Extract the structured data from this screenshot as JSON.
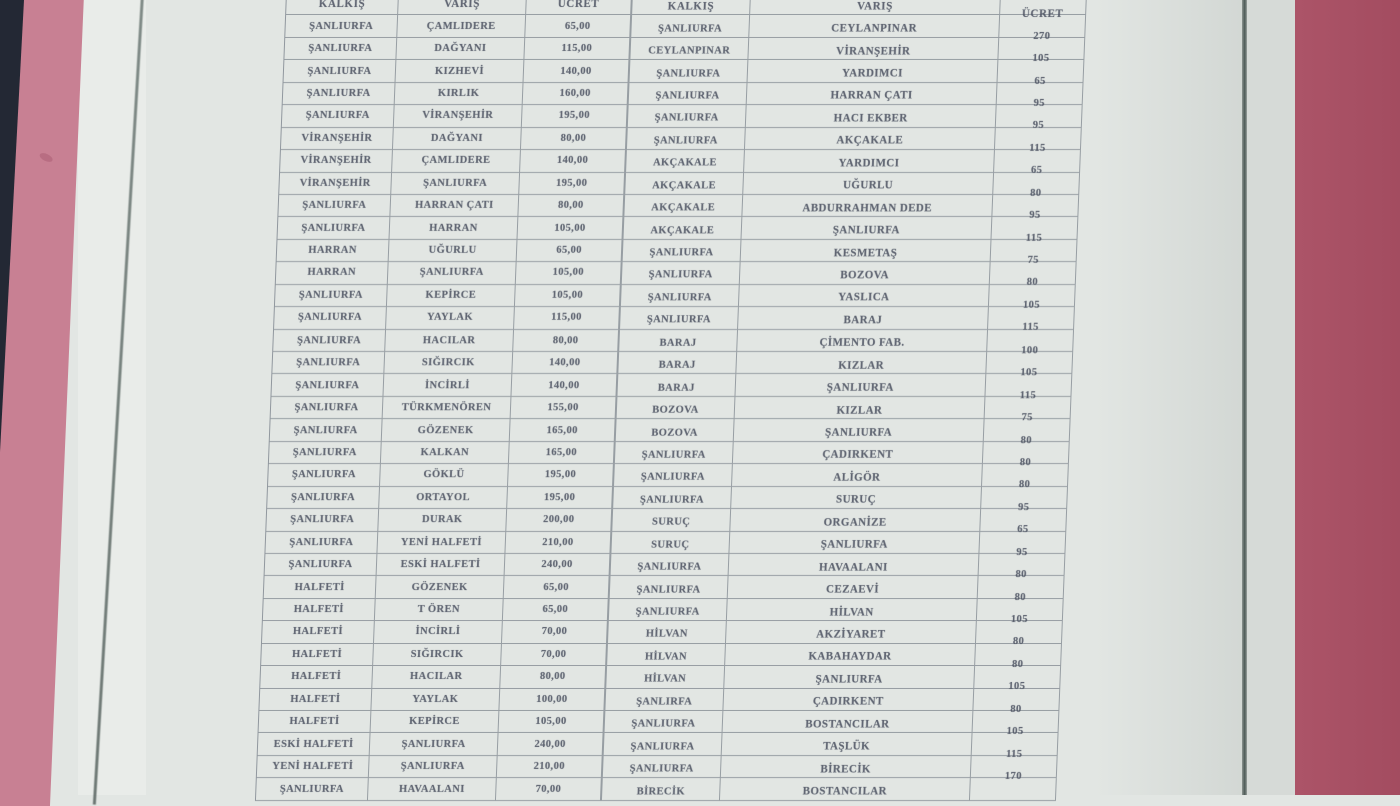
{
  "document_photo": {
    "description_labels": {
      "table_name": "fare-table"
    },
    "colors": {
      "paper": "#e2e6e3",
      "paper_bright": "#e9ece9",
      "paper_outer_strip": "#d6dad7",
      "ink": "#4a5160",
      "grid_line": "#5a6270",
      "pink_band_left": "#c88093",
      "pink_smudge": "#a85a72",
      "red_band_right": "#ac5468",
      "black_wedge": "#232834",
      "fold_line": "#4d5a57"
    },
    "table": {
      "headers": [
        "KALKIŞ",
        "VARIŞ",
        "ÜCRET",
        "KALKIŞ",
        "VARIŞ",
        "ÜCRET"
      ],
      "rows": [
        [
          "ŞANLIURFA",
          "ÇAMLIDERE",
          "65,00",
          "ŞANLIURFA",
          "CEYLANPINAR",
          "270"
        ],
        [
          "ŞANLIURFA",
          "DAĞYANI",
          "115,00",
          "CEYLANPINAR",
          "VİRANŞEHİR",
          "105"
        ],
        [
          "ŞANLIURFA",
          "KIZHEVİ",
          "140,00",
          "ŞANLIURFA",
          "YARDIMCI",
          "65"
        ],
        [
          "ŞANLIURFA",
          "KIRLIK",
          "160,00",
          "ŞANLIURFA",
          "HARRAN ÇATI",
          "95"
        ],
        [
          "ŞANLIURFA",
          "VİRANŞEHİR",
          "195,00",
          "ŞANLIURFA",
          "HACI EKBER",
          "95"
        ],
        [
          "VİRANŞEHİR",
          "DAĞYANI",
          "80,00",
          "ŞANLIURFA",
          "AKÇAKALE",
          "115"
        ],
        [
          "VİRANŞEHİR",
          "ÇAMLIDERE",
          "140,00",
          "AKÇAKALE",
          "YARDIMCI",
          "65"
        ],
        [
          "VİRANŞEHİR",
          "ŞANLIURFA",
          "195,00",
          "AKÇAKALE",
          "UĞURLU",
          "80"
        ],
        [
          "ŞANLIURFA",
          "HARRAN ÇATI",
          "80,00",
          "AKÇAKALE",
          "ABDURRAHMAN DEDE",
          "95"
        ],
        [
          "ŞANLIURFA",
          "HARRAN",
          "105,00",
          "AKÇAKALE",
          "ŞANLIURFA",
          "115"
        ],
        [
          "HARRAN",
          "UĞURLU",
          "65,00",
          "ŞANLIURFA",
          "KESMETAŞ",
          "75"
        ],
        [
          "HARRAN",
          "ŞANLIURFA",
          "105,00",
          "ŞANLIURFA",
          "BOZOVA",
          "80"
        ],
        [
          "ŞANLIURFA",
          "KEPİRCE",
          "105,00",
          "ŞANLIURFA",
          "YASLICA",
          "105"
        ],
        [
          "ŞANLIURFA",
          "YAYLAK",
          "115,00",
          "ŞANLIURFA",
          "BARAJ",
          "115"
        ],
        [
          "ŞANLIURFA",
          "HACILAR",
          "80,00",
          "BARAJ",
          "ÇİMENTO FAB.",
          "100"
        ],
        [
          "ŞANLIURFA",
          "SIĞIRCIK",
          "140,00",
          "BARAJ",
          "KIZLAR",
          "105"
        ],
        [
          "ŞANLIURFA",
          "İNCİRLİ",
          "140,00",
          "BARAJ",
          "ŞANLIURFA",
          "115"
        ],
        [
          "ŞANLIURFA",
          "TÜRKMENÖREN",
          "155,00",
          "BOZOVA",
          "KIZLAR",
          "75"
        ],
        [
          "ŞANLIURFA",
          "GÖZENEK",
          "165,00",
          "BOZOVA",
          "ŞANLIURFA",
          "80"
        ],
        [
          "ŞANLIURFA",
          "KALKAN",
          "165,00",
          "ŞANLIURFA",
          "ÇADIRKENT",
          "80"
        ],
        [
          "ŞANLIURFA",
          "GÖKLÜ",
          "195,00",
          "ŞANLIURFA",
          "ALİGÖR",
          "80"
        ],
        [
          "ŞANLIURFA",
          "ORTAYOL",
          "195,00",
          "ŞANLIURFA",
          "SURUÇ",
          "95"
        ],
        [
          "ŞANLIURFA",
          "DURAK",
          "200,00",
          "SURUÇ",
          "ORGANİZE",
          "65"
        ],
        [
          "ŞANLIURFA",
          "YENİ HALFETİ",
          "210,00",
          "SURUÇ",
          "ŞANLIURFA",
          "95"
        ],
        [
          "ŞANLIURFA",
          "ESKİ HALFETİ",
          "240,00",
          "ŞANLIURFA",
          "HAVAALANI",
          "80"
        ],
        [
          "HALFETİ",
          "GÖZENEK",
          "65,00",
          "ŞANLIURFA",
          "CEZAEVİ",
          "80"
        ],
        [
          "HALFETİ",
          "T ÖREN",
          "65,00",
          "ŞANLIURFA",
          "HİLVAN",
          "105"
        ],
        [
          "HALFETİ",
          "İNCİRLİ",
          "70,00",
          "HİLVAN",
          "AKZİYARET",
          "80"
        ],
        [
          "HALFETİ",
          "SIĞIRCIK",
          "70,00",
          "HİLVAN",
          "KABAHAYDAR",
          "80"
        ],
        [
          "HALFETİ",
          "HACILAR",
          "80,00",
          "HİLVAN",
          "ŞANLIURFA",
          "105"
        ],
        [
          "HALFETİ",
          "YAYLAK",
          "100,00",
          "ŞANLIRFA",
          "ÇADIRKENT",
          "80"
        ],
        [
          "HALFETİ",
          "KEPİRCE",
          "105,00",
          "ŞANLIURFA",
          "BOSTANCILAR",
          "105"
        ],
        [
          "ESKİ HALFETİ",
          "ŞANLIURFA",
          "240,00",
          "ŞANLIURFA",
          "TAŞLÜK",
          "115"
        ],
        [
          "YENİ HALFETİ",
          "ŞANLIURFA",
          "210,00",
          "ŞANLIURFA",
          "BİRECİK",
          "170"
        ],
        [
          "ŞANLIURFA",
          "HAVAALANI",
          "70,00",
          "BİRECİK",
          "BOSTANCILAR",
          ""
        ]
      ]
    }
  }
}
